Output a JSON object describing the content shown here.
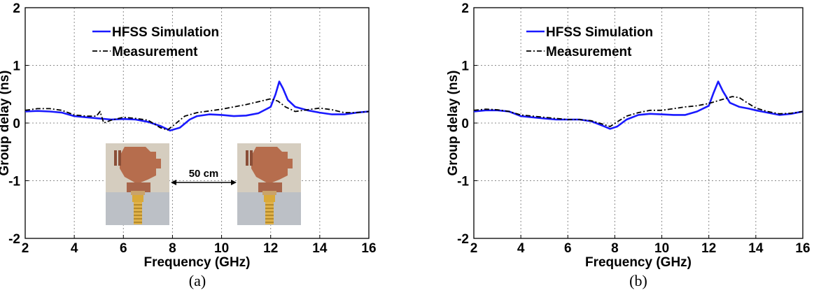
{
  "chart_data": [
    {
      "type": "line",
      "caption": "(a)",
      "xlabel": "Frequency (GHz)",
      "ylabel": "Group delay (ns)",
      "xlim": [
        2,
        16
      ],
      "ylim": [
        -2,
        2
      ],
      "xticks": [
        "2",
        "4",
        "6",
        "8",
        "10",
        "12",
        "14",
        "16"
      ],
      "yticks": [
        "2",
        "1",
        "0",
        "-1",
        "-2"
      ],
      "grid": true,
      "legend_position": "top-left",
      "annotation": "50 cm",
      "series": [
        {
          "name": "HFSS Simulation",
          "color": "#1a1aff",
          "style": "solid",
          "x": [
            2,
            2.5,
            3,
            3.5,
            4,
            4.5,
            5,
            5.5,
            6,
            6.5,
            7,
            7.5,
            7.9,
            8.3,
            8.7,
            9,
            9.5,
            10,
            10.5,
            11,
            11.5,
            12,
            12.2,
            12.35,
            12.5,
            12.7,
            13,
            13.5,
            14,
            14.5,
            15,
            15.5,
            16
          ],
          "y": [
            0.2,
            0.21,
            0.2,
            0.18,
            0.12,
            0.1,
            0.08,
            0.06,
            0.07,
            0.06,
            0.02,
            -0.05,
            -0.13,
            -0.08,
            0.06,
            0.12,
            0.15,
            0.14,
            0.12,
            0.13,
            0.17,
            0.28,
            0.5,
            0.72,
            0.6,
            0.4,
            0.28,
            0.22,
            0.18,
            0.15,
            0.15,
            0.18,
            0.2
          ]
        },
        {
          "name": "Measurement",
          "color": "#000000",
          "style": "dashdot",
          "x": [
            2,
            2.5,
            3,
            3.5,
            4,
            4.5,
            4.9,
            5.05,
            5.2,
            5.5,
            6,
            6.5,
            7,
            7.5,
            7.8,
            8.1,
            8.5,
            9,
            9.5,
            10,
            10.5,
            11,
            11.5,
            12,
            12.3,
            12.6,
            13,
            13.5,
            14,
            14.5,
            15,
            15.5,
            16
          ],
          "y": [
            0.22,
            0.25,
            0.25,
            0.22,
            0.14,
            0.12,
            0.12,
            0.2,
            0.0,
            0.05,
            0.1,
            0.08,
            0.05,
            -0.08,
            -0.12,
            -0.02,
            0.12,
            0.18,
            0.21,
            0.24,
            0.28,
            0.32,
            0.37,
            0.42,
            0.38,
            0.28,
            0.2,
            0.23,
            0.26,
            0.23,
            0.18,
            0.18,
            0.2
          ]
        }
      ]
    },
    {
      "type": "line",
      "caption": "(b)",
      "xlabel": "Frequency (GHz)",
      "ylabel": "Group delay (ns)",
      "xlim": [
        2,
        16
      ],
      "ylim": [
        -2,
        2
      ],
      "xticks": [
        "2",
        "4",
        "6",
        "8",
        "10",
        "12",
        "14",
        "16"
      ],
      "yticks": [
        "2",
        "1",
        "0",
        "-1",
        "-2"
      ],
      "grid": true,
      "legend_position": "top-left",
      "series": [
        {
          "name": "HFSS Simulation",
          "color": "#1a1aff",
          "style": "solid",
          "x": [
            2,
            2.5,
            3,
            3.5,
            4,
            4.5,
            5,
            5.5,
            6,
            6.5,
            7,
            7.5,
            7.8,
            8.1,
            8.5,
            9,
            9.5,
            10,
            10.5,
            11,
            11.5,
            12,
            12.2,
            12.4,
            12.6,
            12.9,
            13.3,
            13.7,
            14,
            14.5,
            15,
            15.5,
            16
          ],
          "y": [
            0.2,
            0.22,
            0.22,
            0.2,
            0.12,
            0.1,
            0.08,
            0.06,
            0.06,
            0.06,
            0.03,
            -0.05,
            -0.1,
            -0.06,
            0.06,
            0.14,
            0.16,
            0.15,
            0.14,
            0.14,
            0.2,
            0.3,
            0.52,
            0.72,
            0.55,
            0.35,
            0.28,
            0.25,
            0.22,
            0.18,
            0.14,
            0.16,
            0.2
          ]
        },
        {
          "name": "Measurement",
          "color": "#000000",
          "style": "dashdot",
          "x": [
            2,
            2.5,
            3,
            3.5,
            4,
            4.5,
            5,
            5.5,
            6,
            6.5,
            7,
            7.5,
            7.8,
            8.1,
            8.5,
            9,
            9.5,
            10,
            10.5,
            11,
            11.5,
            12,
            12.5,
            13,
            13.3,
            13.6,
            14,
            14.5,
            15,
            15.5,
            16
          ],
          "y": [
            0.22,
            0.24,
            0.23,
            0.2,
            0.14,
            0.12,
            0.1,
            0.08,
            0.06,
            0.06,
            0.04,
            -0.02,
            -0.06,
            0.02,
            0.12,
            0.18,
            0.22,
            0.22,
            0.25,
            0.28,
            0.3,
            0.34,
            0.4,
            0.46,
            0.44,
            0.36,
            0.26,
            0.2,
            0.16,
            0.17,
            0.2
          ]
        }
      ]
    }
  ]
}
